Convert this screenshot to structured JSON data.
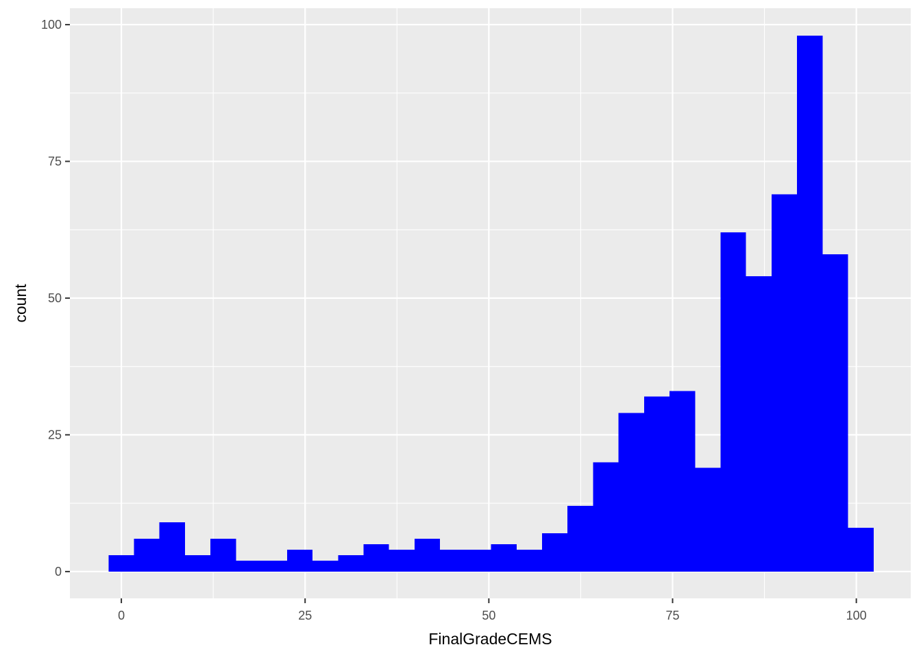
{
  "chart_data": {
    "type": "bar",
    "xlabel": "FinalGradeCEMS",
    "ylabel": "count",
    "bins": [
      {
        "x0": -1.75,
        "x1": 1.72,
        "count": 3
      },
      {
        "x0": 1.72,
        "x1": 5.19,
        "count": 6
      },
      {
        "x0": 5.19,
        "x1": 8.66,
        "count": 9
      },
      {
        "x0": 8.66,
        "x1": 12.13,
        "count": 3
      },
      {
        "x0": 12.13,
        "x1": 15.6,
        "count": 6
      },
      {
        "x0": 15.6,
        "x1": 19.07,
        "count": 2
      },
      {
        "x0": 19.07,
        "x1": 22.54,
        "count": 2
      },
      {
        "x0": 22.54,
        "x1": 26.01,
        "count": 4
      },
      {
        "x0": 26.01,
        "x1": 29.48,
        "count": 2
      },
      {
        "x0": 29.48,
        "x1": 32.95,
        "count": 3
      },
      {
        "x0": 32.95,
        "x1": 36.42,
        "count": 5
      },
      {
        "x0": 36.42,
        "x1": 39.89,
        "count": 4
      },
      {
        "x0": 39.89,
        "x1": 43.36,
        "count": 6
      },
      {
        "x0": 43.36,
        "x1": 46.83,
        "count": 4
      },
      {
        "x0": 46.83,
        "x1": 50.3,
        "count": 4
      },
      {
        "x0": 50.3,
        "x1": 53.77,
        "count": 5
      },
      {
        "x0": 53.77,
        "x1": 57.24,
        "count": 4
      },
      {
        "x0": 57.24,
        "x1": 60.71,
        "count": 7
      },
      {
        "x0": 60.71,
        "x1": 64.18,
        "count": 12
      },
      {
        "x0": 64.18,
        "x1": 67.65,
        "count": 20
      },
      {
        "x0": 67.65,
        "x1": 71.12,
        "count": 29
      },
      {
        "x0": 71.12,
        "x1": 74.59,
        "count": 32
      },
      {
        "x0": 74.59,
        "x1": 78.06,
        "count": 33
      },
      {
        "x0": 78.06,
        "x1": 81.53,
        "count": 19
      },
      {
        "x0": 81.53,
        "x1": 85.0,
        "count": 62
      },
      {
        "x0": 85.0,
        "x1": 88.47,
        "count": 54
      },
      {
        "x0": 88.47,
        "x1": 91.94,
        "count": 69
      },
      {
        "x0": 91.94,
        "x1": 95.41,
        "count": 98
      },
      {
        "x0": 95.41,
        "x1": 98.88,
        "count": 58
      },
      {
        "x0": 98.88,
        "x1": 102.35,
        "count": 8
      }
    ],
    "xlim": [
      -7,
      107.4
    ],
    "ylim": [
      -4.9,
      103
    ],
    "x_ticks": [
      0,
      25,
      50,
      75,
      100
    ],
    "x_tick_labels": [
      "0",
      "25",
      "50",
      "75",
      "100"
    ],
    "y_ticks": [
      0,
      25,
      50,
      75,
      100
    ],
    "y_tick_labels": [
      "0",
      "25",
      "50",
      "75",
      "100"
    ],
    "grid": true,
    "bar_color": "#0000FF",
    "panel_color": "#EBEBEB",
    "grid_color": "#FFFFFF"
  }
}
